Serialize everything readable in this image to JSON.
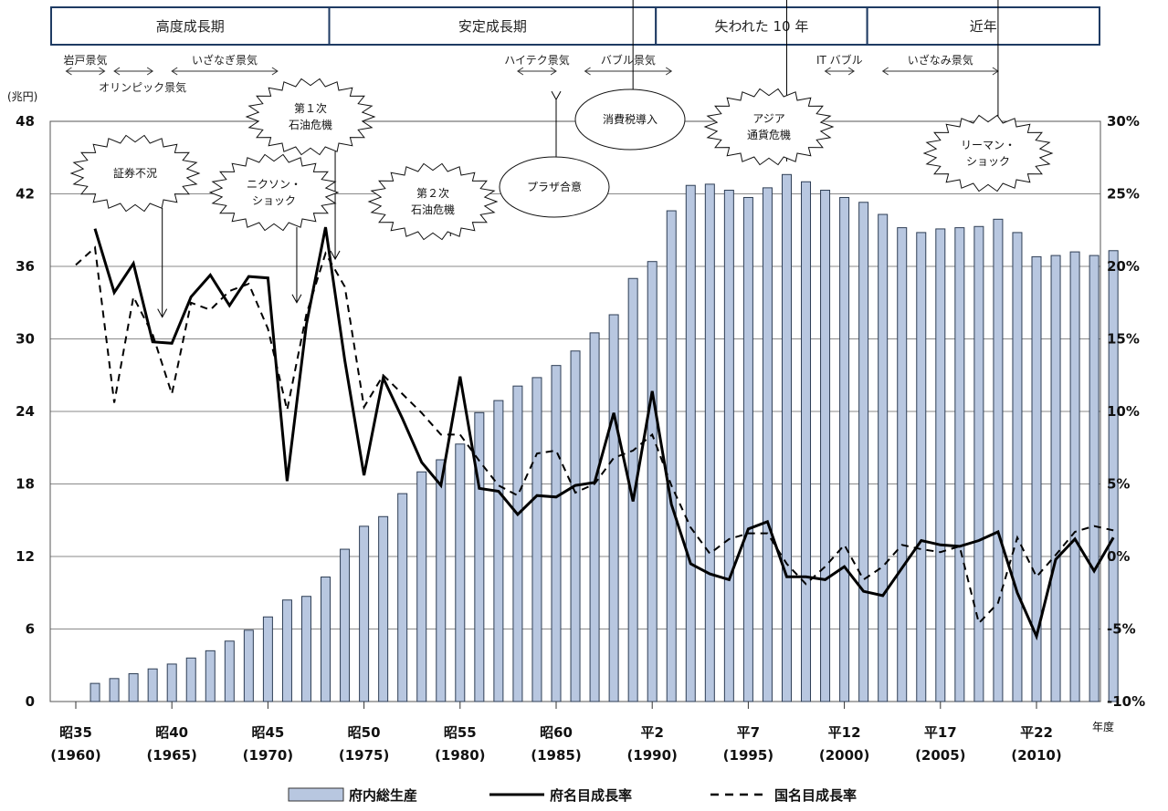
{
  "periods": [
    {
      "label": "高度成長期",
      "from": 1960,
      "to": 1973
    },
    {
      "label": "安定成長期",
      "from": 1973,
      "to": 1990
    },
    {
      "label": "失われた 10 年",
      "from": 1990,
      "to": 2001
    },
    {
      "label": "近年",
      "from": 2001,
      "to": 2014
    }
  ],
  "booms": [
    {
      "label": "岩戸景気",
      "from": 1959.5,
      "to": 1961.5,
      "row": 1
    },
    {
      "label": "オリンピック景気",
      "from": 1962,
      "to": 1964,
      "row": 2
    },
    {
      "label": "いざなぎ景気",
      "from": 1965,
      "to": 1970.5,
      "row": 1
    },
    {
      "label": "ハイテク景気",
      "from": 1983,
      "to": 1985,
      "row": 1
    },
    {
      "label": "バブル景気",
      "from": 1986.5,
      "to": 1991,
      "row": 1
    },
    {
      "label": "IT バブル",
      "from": 1999,
      "to": 2000.5,
      "row": 1
    },
    {
      "label": "いざなみ景気",
      "from": 2002,
      "to": 2008,
      "row": 1
    }
  ],
  "events": [
    {
      "label": [
        "証券不況"
      ],
      "shape": "burst",
      "year": 1964.5,
      "y_value": 16.5
    },
    {
      "label": [
        "第１次",
        "石油危機"
      ],
      "shape": "burst",
      "year": 1973.5,
      "y_value": 20.5
    },
    {
      "label": [
        "ニクソン・",
        "ショック"
      ],
      "shape": "burst",
      "year": 1971.5,
      "y_value": 17.5
    },
    {
      "label": [
        "第２次",
        "石油危機"
      ],
      "shape": "burst",
      "year": 1979.5,
      "y_value": 25.5
    },
    {
      "label": [
        "プラザ合意"
      ],
      "shape": "ellipse",
      "year": 1985,
      "y_value": 31.5
    },
    {
      "label": [
        "消費税導入"
      ],
      "shape": "ellipse",
      "year": 1989,
      "y_value": 40.5
    },
    {
      "label": [
        "アジア",
        "通貨危機"
      ],
      "shape": "burst",
      "year": 1997,
      "y_value": 43.5
    },
    {
      "label": [
        "リーマン・",
        "ショック"
      ],
      "shape": "burst",
      "year": 2008,
      "y_value": 40.5
    }
  ],
  "legend": {
    "bar": "府内総生産",
    "solid": "府名目成長率",
    "dashed": "国名目成長率"
  },
  "chart_data": {
    "type": "bar",
    "left_unit": "(兆円)",
    "x_unit": "年度",
    "ylim_left": [
      0,
      48
    ],
    "yticks_left": [
      0,
      6,
      12,
      18,
      24,
      30,
      36,
      42,
      48
    ],
    "ylim_right": [
      -10,
      30
    ],
    "yticks_right": [
      "-10%",
      "-5%",
      "0%",
      "5%",
      "10%",
      "15%",
      "20%",
      "25%",
      "30%"
    ],
    "yticks_right_values": [
      -10,
      -5,
      0,
      5,
      10,
      15,
      20,
      25,
      30
    ],
    "x_range": [
      1960,
      2014
    ],
    "xticks": [
      {
        "year": 1960,
        "era": "昭35",
        "ad": "(1960)"
      },
      {
        "year": 1965,
        "era": "昭40",
        "ad": "(1965)"
      },
      {
        "year": 1970,
        "era": "昭45",
        "ad": "(1970)"
      },
      {
        "year": 1975,
        "era": "昭50",
        "ad": "(1975)"
      },
      {
        "year": 1980,
        "era": "昭55",
        "ad": "(1980)"
      },
      {
        "year": 1985,
        "era": "昭60",
        "ad": "(1985)"
      },
      {
        "year": 1990,
        "era": "平2",
        "ad": "(1990)"
      },
      {
        "year": 1995,
        "era": "平7",
        "ad": "(1995)"
      },
      {
        "year": 2000,
        "era": "平12",
        "ad": "(2000)"
      },
      {
        "year": 2005,
        "era": "平17",
        "ad": "(2005)"
      },
      {
        "year": 2010,
        "era": "平22",
        "ad": "(2010)"
      }
    ],
    "bar_years": [
      1961,
      1962,
      1963,
      1964,
      1965,
      1966,
      1967,
      1968,
      1969,
      1970,
      1971,
      1972,
      1973,
      1974,
      1975,
      1976,
      1977,
      1978,
      1979,
      1980,
      1981,
      1982,
      1983,
      1984,
      1985,
      1986,
      1987,
      1988,
      1989,
      1990,
      1991,
      1992,
      1993,
      1994,
      1995,
      1996,
      1997,
      1998,
      1999,
      2000,
      2001,
      2002,
      2003,
      2004,
      2005,
      2006,
      2007,
      2008,
      2009,
      2010,
      2011,
      2012,
      2013,
      2014
    ],
    "series": [
      {
        "name": "府内総生産",
        "kind": "bar",
        "axis": "left",
        "values": [
          1.5,
          1.9,
          2.3,
          2.7,
          3.1,
          3.6,
          4.2,
          5.0,
          5.9,
          7.0,
          8.4,
          8.7,
          10.3,
          12.6,
          14.5,
          15.3,
          17.2,
          19.0,
          20.0,
          21.3,
          23.9,
          24.9,
          26.1,
          26.8,
          27.8,
          29.0,
          30.5,
          32.0,
          35.0,
          36.4,
          40.6,
          42.7,
          42.8,
          42.3,
          41.7,
          42.5,
          43.6,
          43.0,
          42.3,
          41.7,
          41.3,
          40.3,
          39.2,
          38.8,
          39.1,
          39.2,
          39.3,
          39.9,
          38.8,
          36.8,
          36.9,
          37.2,
          36.9,
          37.3
        ]
      },
      {
        "name": "府名目成長率",
        "kind": "line",
        "axis": "right",
        "years": [
          1961,
          1962,
          1963,
          1964,
          1965,
          1966,
          1967,
          1968,
          1969,
          1970,
          1971,
          1972,
          1973,
          1974,
          1975,
          1976,
          1977,
          1978,
          1979,
          1980,
          1981,
          1982,
          1983,
          1984,
          1985,
          1986,
          1987,
          1988,
          1989,
          1990,
          1991,
          1992,
          1993,
          1994,
          1995,
          1996,
          1997,
          1998,
          1999,
          2000,
          2001,
          2002,
          2003,
          2004,
          2005,
          2006,
          2007,
          2008,
          2009,
          2010,
          2011,
          2012,
          2013,
          2014
        ],
        "values": [
          22.6,
          18.2,
          20.2,
          14.8,
          14.7,
          17.9,
          19.4,
          17.3,
          19.3,
          19.2,
          5.2,
          16.0,
          22.7,
          13.5,
          5.6,
          12.3,
          9.5,
          6.5,
          4.9,
          12.4,
          4.7,
          4.5,
          2.9,
          4.2,
          4.1,
          4.9,
          5.1,
          9.9,
          3.8,
          11.4,
          3.6,
          -0.5,
          -1.2,
          -1.6,
          1.9,
          2.4,
          -1.4,
          -1.4,
          -1.6,
          -0.7,
          -2.4,
          -2.7,
          -0.8,
          1.1,
          0.8,
          0.7,
          1.1,
          1.7,
          -2.5,
          -5.5,
          -0.2,
          1.2,
          -1.0,
          1.3
        ]
      },
      {
        "name": "国名目成長率",
        "kind": "line",
        "dashed": true,
        "axis": "right",
        "years": [
          1960,
          1961,
          1962,
          1963,
          1964,
          1965,
          1966,
          1967,
          1968,
          1969,
          1970,
          1971,
          1972,
          1973,
          1974,
          1975,
          1976,
          1977,
          1978,
          1979,
          1980,
          1981,
          1982,
          1983,
          1984,
          1985,
          1986,
          1987,
          1988,
          1989,
          1990,
          1991,
          1992,
          1993,
          1994,
          1995,
          1996,
          1997,
          1998,
          1999,
          2000,
          2001,
          2002,
          2003,
          2004,
          2005,
          2006,
          2007,
          2008,
          2009,
          2010,
          2011,
          2012,
          2013,
          2014
        ],
        "values": [
          20.1,
          21.3,
          10.6,
          17.9,
          15.3,
          11.2,
          17.5,
          17.0,
          18.3,
          18.8,
          15.7,
          10.1,
          16.7,
          20.9,
          18.6,
          10.3,
          12.5,
          11.2,
          9.9,
          8.4,
          8.4,
          6.6,
          4.9,
          4.2,
          7.1,
          7.3,
          4.4,
          5.0,
          6.8,
          7.3,
          8.4,
          4.9,
          2.0,
          0.2,
          1.2,
          1.6,
          1.6,
          -0.5,
          -1.9,
          -0.7,
          0.8,
          -1.6,
          -0.7,
          0.8,
          0.5,
          0.3,
          0.7,
          -4.6,
          -3.2,
          1.3,
          -1.4,
          0.1,
          1.7,
          2.1,
          1.8
        ]
      }
    ]
  }
}
